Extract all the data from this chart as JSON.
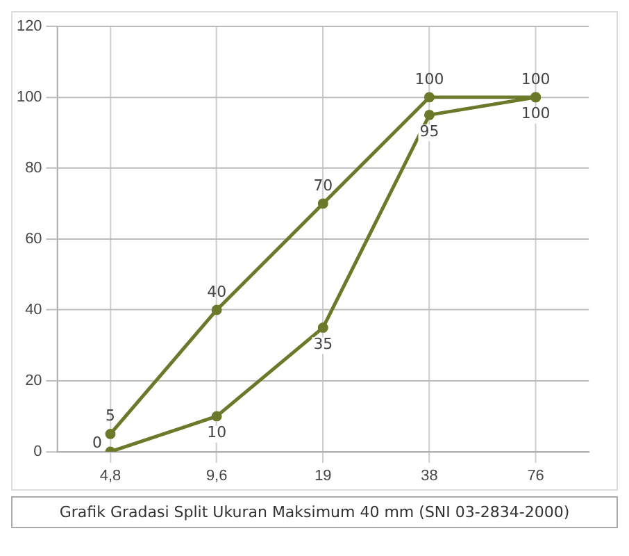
{
  "chart_data": {
    "type": "line",
    "title": "Grafik Gradasi Split Ukuran Maksimum 40 mm (SNI 03-2834-2000)",
    "categories": [
      "4,8",
      "9,6",
      "19",
      "38",
      "76"
    ],
    "series": [
      {
        "color": "#6b7a2a",
        "values": [
          5,
          40,
          70,
          100,
          100
        ]
      },
      {
        "color": "#6b7a2a",
        "values": [
          0,
          10,
          35,
          95,
          100
        ]
      }
    ],
    "ylim": [
      0,
      120
    ],
    "yticks": [
      0,
      20,
      40,
      60,
      80,
      100,
      120
    ],
    "grid": true,
    "marker": "circle",
    "line_style": "solid",
    "data_labels": true,
    "legend": false
  }
}
